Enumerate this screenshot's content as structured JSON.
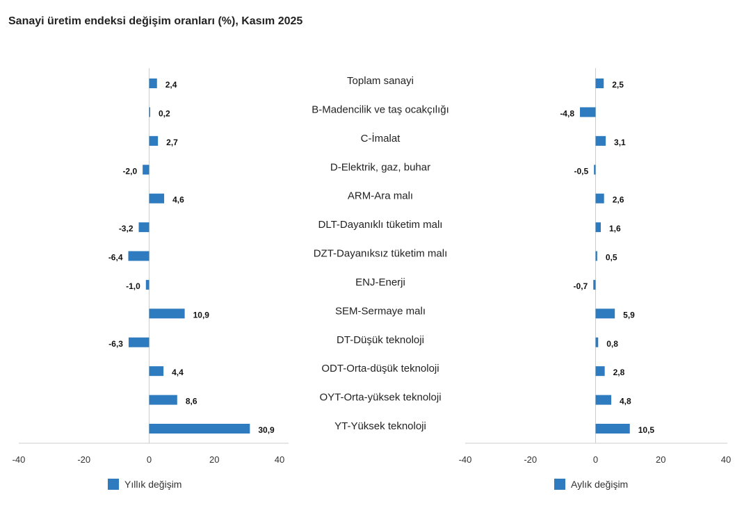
{
  "title": "Sanayi üretim endeksi değişim oranları (%), Kasım 2025",
  "chart_data": [
    {
      "type": "bar",
      "orientation": "horizontal",
      "categories": [
        "Toplam sanayi",
        "B-Madencilik ve taş ocakçılığı",
        "C-İmalat",
        "D-Elektrik, gaz, buhar",
        "ARM-Ara malı",
        "DLT-Dayanıklı tüketim malı",
        "DZT-Dayanıksız tüketim malı",
        "ENJ-Enerji",
        "SEM-Sermaye malı",
        "DT-Düşük teknoloji",
        "ODT-Orta-düşük teknoloji",
        "OYT-Orta-yüksek teknoloji",
        "YT-Yüksek teknoloji"
      ],
      "series": [
        {
          "name": "Yıllık değişim",
          "values": [
            2.4,
            0.2,
            2.7,
            -2.0,
            4.6,
            -3.2,
            -6.4,
            -1.0,
            10.9,
            -6.3,
            4.4,
            8.6,
            30.9
          ]
        }
      ],
      "data_labels": [
        "2,4",
        "0,2",
        "2,7",
        "-2,0",
        "4,6",
        "-3,2",
        "-6,4",
        "-1,0",
        "10,9",
        "-6,3",
        "4,4",
        "8,6",
        "30,9"
      ],
      "xlim": [
        -40,
        40
      ],
      "xticks": [
        "-40",
        "-20",
        "0",
        "20",
        "40"
      ],
      "grid": false,
      "legend": "bottom-left",
      "color": "#2f7bbf"
    },
    {
      "type": "bar",
      "orientation": "horizontal",
      "categories": [
        "Toplam sanayi",
        "B-Madencilik ve taş ocakçılığı",
        "C-İmalat",
        "D-Elektrik, gaz, buhar",
        "ARM-Ara malı",
        "DLT-Dayanıklı tüketim malı",
        "DZT-Dayanıksız tüketim malı",
        "ENJ-Enerji",
        "SEM-Sermaye malı",
        "DT-Düşük teknoloji",
        "ODT-Orta-düşük teknoloji",
        "OYT-Orta-yüksek teknoloji",
        "YT-Yüksek teknoloji"
      ],
      "series": [
        {
          "name": "Aylık değişim",
          "values": [
            2.5,
            -4.8,
            3.1,
            -0.5,
            2.6,
            1.6,
            0.5,
            -0.7,
            5.9,
            0.8,
            2.8,
            4.8,
            10.5
          ]
        }
      ],
      "data_labels": [
        "2,5",
        "-4,8",
        "3,1",
        "-0,5",
        "2,6",
        "1,6",
        "0,5",
        "-0,7",
        "5,9",
        "0,8",
        "2,8",
        "4,8",
        "10,5"
      ],
      "xlim": [
        -40,
        40
      ],
      "xticks": [
        "-40",
        "-20",
        "0",
        "20",
        "40"
      ],
      "grid": false,
      "legend": "bottom-right",
      "color": "#2f7bbf"
    }
  ]
}
